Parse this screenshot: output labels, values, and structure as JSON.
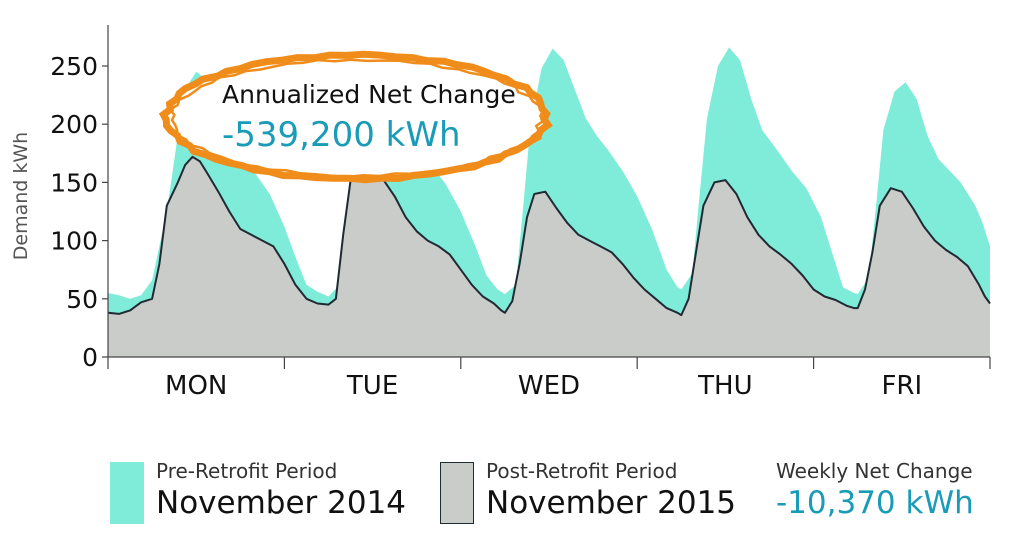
{
  "chart_data": {
    "type": "area",
    "ylabel": "Demand kWh",
    "ylim": [
      0,
      285
    ],
    "yticks": [
      0,
      50,
      100,
      150,
      200,
      250
    ],
    "categories": [
      "MON",
      "TUE",
      "WED",
      "THU",
      "FRI"
    ],
    "x_unit": "hours",
    "x_range": [
      0,
      120
    ],
    "series": [
      {
        "name": "Pre-Retrofit Period",
        "period": "November 2014",
        "color": "#7eecd8",
        "points": [
          [
            0,
            55
          ],
          [
            1.5,
            53
          ],
          [
            3,
            50
          ],
          [
            4.5,
            53
          ],
          [
            6,
            66
          ],
          [
            8,
            125
          ],
          [
            9.5,
            190
          ],
          [
            10.5,
            230
          ],
          [
            12,
            245
          ],
          [
            13.5,
            238
          ],
          [
            15,
            208
          ],
          [
            16.5,
            185
          ],
          [
            18,
            170
          ],
          [
            20,
            158
          ],
          [
            22,
            140
          ],
          [
            24,
            112
          ],
          [
            25.5,
            86
          ],
          [
            27,
            62
          ],
          [
            28.5,
            56
          ],
          [
            30,
            52
          ],
          [
            31.5,
            62
          ],
          [
            32.5,
            125
          ],
          [
            33.5,
            195
          ],
          [
            35,
            240
          ],
          [
            36.5,
            248
          ],
          [
            38,
            238
          ],
          [
            39.5,
            222
          ],
          [
            41,
            200
          ],
          [
            42.5,
            180
          ],
          [
            44,
            165
          ],
          [
            46,
            148
          ],
          [
            48,
            125
          ],
          [
            50,
            95
          ],
          [
            51.5,
            70
          ],
          [
            53,
            58
          ],
          [
            54,
            54
          ],
          [
            55.5,
            62
          ],
          [
            56.5,
            130
          ],
          [
            57.5,
            200
          ],
          [
            59,
            248
          ],
          [
            60.5,
            265
          ],
          [
            62,
            255
          ],
          [
            63.5,
            230
          ],
          [
            65,
            205
          ],
          [
            66.5,
            190
          ],
          [
            68,
            178
          ],
          [
            70,
            160
          ],
          [
            72,
            138
          ],
          [
            74,
            110
          ],
          [
            76,
            75
          ],
          [
            77.5,
            60
          ],
          [
            78,
            58
          ],
          [
            79.5,
            72
          ],
          [
            80.5,
            140
          ],
          [
            81.5,
            205
          ],
          [
            83,
            250
          ],
          [
            84.5,
            266
          ],
          [
            86,
            255
          ],
          [
            87.5,
            222
          ],
          [
            89,
            195
          ],
          [
            91,
            178
          ],
          [
            93,
            160
          ],
          [
            95,
            145
          ],
          [
            97,
            120
          ],
          [
            98.5,
            90
          ],
          [
            100,
            60
          ],
          [
            101.5,
            55
          ],
          [
            102,
            54
          ],
          [
            103.5,
            68
          ],
          [
            104.5,
            130
          ],
          [
            105.5,
            195
          ],
          [
            107,
            228
          ],
          [
            108.5,
            236
          ],
          [
            110,
            222
          ],
          [
            111.5,
            190
          ],
          [
            113,
            170
          ],
          [
            114.5,
            160
          ],
          [
            116,
            150
          ],
          [
            118,
            130
          ],
          [
            119,
            115
          ],
          [
            120,
            95
          ]
        ]
      },
      {
        "name": "Post-Retrofit Period",
        "period": "November 2015",
        "color": "#c9ccc9",
        "points": [
          [
            0,
            38
          ],
          [
            1.5,
            37
          ],
          [
            3,
            40
          ],
          [
            4.5,
            47
          ],
          [
            6,
            50
          ],
          [
            7,
            80
          ],
          [
            8,
            130
          ],
          [
            9.5,
            150
          ],
          [
            10.5,
            165
          ],
          [
            11.5,
            172
          ],
          [
            12.5,
            168
          ],
          [
            13.5,
            158
          ],
          [
            15,
            142
          ],
          [
            16.5,
            125
          ],
          [
            18,
            110
          ],
          [
            19.5,
            105
          ],
          [
            21,
            100
          ],
          [
            22.5,
            95
          ],
          [
            24,
            80
          ],
          [
            25.5,
            62
          ],
          [
            27,
            50
          ],
          [
            28.5,
            46
          ],
          [
            30,
            45
          ],
          [
            31,
            50
          ],
          [
            32,
            105
          ],
          [
            33,
            152
          ],
          [
            34.5,
            170
          ],
          [
            36,
            168
          ],
          [
            37.5,
            152
          ],
          [
            39,
            138
          ],
          [
            40.5,
            120
          ],
          [
            42,
            108
          ],
          [
            43.5,
            100
          ],
          [
            45,
            95
          ],
          [
            46.5,
            88
          ],
          [
            48,
            75
          ],
          [
            49.5,
            62
          ],
          [
            51,
            52
          ],
          [
            52.5,
            46
          ],
          [
            53.5,
            40
          ],
          [
            54,
            38
          ],
          [
            55,
            48
          ],
          [
            56,
            80
          ],
          [
            57,
            120
          ],
          [
            58,
            140
          ],
          [
            59.5,
            142
          ],
          [
            61,
            128
          ],
          [
            62.5,
            115
          ],
          [
            64,
            105
          ],
          [
            65.5,
            100
          ],
          [
            67,
            95
          ],
          [
            68.5,
            90
          ],
          [
            70,
            80
          ],
          [
            71.5,
            68
          ],
          [
            73,
            58
          ],
          [
            74.5,
            50
          ],
          [
            76,
            42
          ],
          [
            77.5,
            38
          ],
          [
            78,
            36
          ],
          [
            79,
            50
          ],
          [
            80,
            90
          ],
          [
            81,
            130
          ],
          [
            82.5,
            150
          ],
          [
            84,
            152
          ],
          [
            85.5,
            140
          ],
          [
            87,
            120
          ],
          [
            88.5,
            105
          ],
          [
            90,
            95
          ],
          [
            91.5,
            88
          ],
          [
            93,
            80
          ],
          [
            94.5,
            70
          ],
          [
            96,
            58
          ],
          [
            97.5,
            52
          ],
          [
            99,
            49
          ],
          [
            100.5,
            44
          ],
          [
            101.5,
            42
          ],
          [
            102,
            42
          ],
          [
            103,
            58
          ],
          [
            104,
            90
          ],
          [
            105,
            130
          ],
          [
            106.5,
            145
          ],
          [
            108,
            142
          ],
          [
            109.5,
            128
          ],
          [
            111,
            112
          ],
          [
            112.5,
            100
          ],
          [
            114,
            92
          ],
          [
            115.5,
            86
          ],
          [
            117,
            78
          ],
          [
            118.5,
            62
          ],
          [
            119.3,
            52
          ],
          [
            120,
            46
          ]
        ]
      }
    ],
    "annotation": {
      "label": "Annualized Net Change",
      "value": "-539,200 kWh"
    },
    "summary": {
      "label": "Weekly Net Change",
      "value": "-10,370 kWh"
    }
  },
  "legend": {
    "pre": {
      "line1": "Pre-Retrofit Period",
      "line2": "November 2014"
    },
    "post": {
      "line1": "Post-Retrofit Period",
      "line2": "November 2015"
    },
    "weekly": {
      "line1": "Weekly Net Change",
      "line2": "-10,370 kWh"
    }
  },
  "colors": {
    "pre_fill": "#7eecd8",
    "post_fill": "#c9ccc9",
    "post_line": "#1f2a33",
    "accent": "#1a9bb8",
    "callout_ring": "#f08c1a"
  }
}
